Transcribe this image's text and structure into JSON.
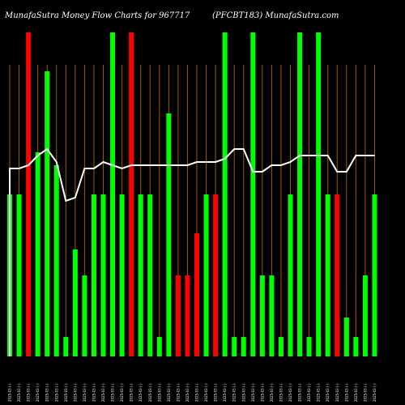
{
  "header": {
    "title_left": "MunafaSutra  Money Flow  Charts for 967717",
    "title_right": "(PFCBT183) MunafaSutra.com"
  },
  "colors": {
    "background": "#000000",
    "up_bar": "#00ff00",
    "down_bar": "#ff0000",
    "line": "#ffffff",
    "grid": "#a05a00"
  },
  "chart_data": {
    "type": "bar",
    "title": "MunafaSutra  Money Flow  Charts for 967717",
    "subtitle": "(PFCBT183) MunafaSutra.com",
    "xlabel": "",
    "ylabel": "",
    "ylim": [
      0,
      100
    ],
    "grid": true,
    "categories": [
      "2025-03 (-)",
      "2025-03 (-)",
      "2025-03 (-)",
      "2025-03 (-)",
      "2025-03 (-)",
      "2025-03 (-)",
      "2025-03 (-)",
      "2025-03 (-)",
      "2025-03 (-)",
      "2025-03 (-)",
      "2025-03 (-)",
      "2025-03 (-)",
      "2025-03 (-)",
      "2025-03 (-)",
      "2025-03 (-)",
      "2025-03 (-)",
      "2025-03 (-)",
      "2025-03 (-)",
      "2025-03 (-)",
      "2025-03 (-)",
      "2025-03 (-)",
      "2025-03 (-)",
      "2025-03 (-)",
      "2025-03 (-)",
      "2025-03 (-)",
      "2025-03 (-)",
      "2025-03 (-)",
      "2025-03 (-)",
      "2025-03 (-)",
      "2025-03 (-)",
      "2025-03 (-)",
      "2025-03 (-)",
      "2025-03 (-)",
      "2025-03 (-)",
      "2025-03 (-)",
      "2025-03 (-)",
      "2025-03 (-)",
      "2025-03 (-)",
      "2025-03 (-)",
      "2025-03 (-)"
    ],
    "series": [
      {
        "values": [
          50,
          50,
          100,
          63,
          88,
          59,
          6,
          33,
          25,
          50,
          50,
          100,
          50,
          100,
          50,
          50,
          6,
          75,
          25,
          25,
          38,
          50,
          50,
          100,
          6,
          6,
          100,
          25,
          25,
          6,
          50,
          100,
          6,
          100,
          50,
          50,
          12,
          6,
          25,
          50
        ],
        "direction": [
          "up",
          "up",
          "down",
          "up",
          "up",
          "up",
          "up",
          "up",
          "up",
          "up",
          "up",
          "up",
          "up",
          "down",
          "up",
          "up",
          "up",
          "up",
          "down",
          "down",
          "down",
          "up",
          "down",
          "up",
          "up",
          "up",
          "up",
          "up",
          "up",
          "up",
          "up",
          "up",
          "up",
          "up",
          "up",
          "down",
          "up",
          "up",
          "up",
          "up"
        ]
      },
      {
        "values": [
          58,
          58,
          59,
          62,
          64,
          60,
          48,
          49,
          58,
          58,
          60,
          59,
          58,
          59,
          59,
          59,
          59,
          59,
          59,
          59,
          60,
          60,
          60,
          61,
          64,
          64,
          57,
          57,
          59,
          59,
          60,
          62,
          62,
          62,
          62,
          57,
          57,
          62,
          62,
          62
        ]
      }
    ]
  }
}
